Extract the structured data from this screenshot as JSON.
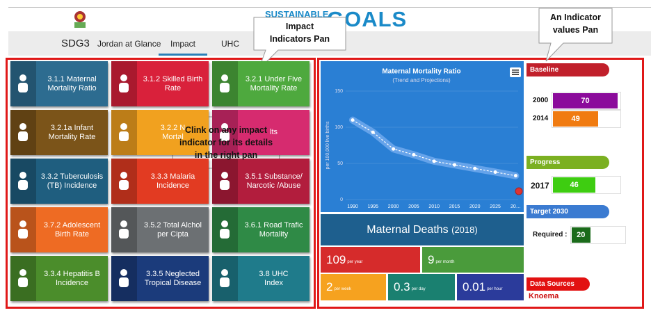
{
  "header": {
    "brand_small": "SUSTAINABLE",
    "brand_large": "GOALS"
  },
  "nav": {
    "tabs": [
      "SDG3",
      "Jordan at Glance",
      "Impact",
      "UHC"
    ],
    "active": 2
  },
  "callouts": [
    {
      "lines": [
        "Impact",
        "Indicators Pan"
      ]
    },
    {
      "lines": [
        "An Indicator",
        "values Pan"
      ]
    },
    {
      "lines": [
        "Clink on any impact",
        "indicator for its details",
        "in the right pan"
      ]
    }
  ],
  "tiles": [
    {
      "lines": [
        "3.1.1 Maternal",
        "Mortality Ratio"
      ],
      "color": "#2d6c90"
    },
    {
      "lines": [
        "3.1.2 Skilled Birth",
        "Rate"
      ],
      "color": "#d9213b"
    },
    {
      "lines": [
        "3.2.1 Under Five",
        "Mortality Rate"
      ],
      "color": "#4ea93e"
    },
    {
      "lines": [
        "3.2.1a Infant",
        "Mortality Rate"
      ],
      "color": "#7b5419"
    },
    {
      "lines": [
        "3.2.2 N",
        "Mortal"
      ],
      "color": "#f1a11f"
    },
    {
      "lines": [
        "lts"
      ],
      "color": "#d62b6f"
    },
    {
      "lines": [
        "3.3.2 Tuberculosis",
        "(TB) Incidence"
      ],
      "color": "#1f5e7f"
    },
    {
      "lines": [
        "3.3.3 Malaria",
        "Incidence"
      ],
      "color": "#e23b22"
    },
    {
      "lines": [
        "3.5.1 Substance/",
        "Narcotic /Abuse"
      ],
      "color": "#b21d3d"
    },
    {
      "lines": [
        "3.7.2 Adolescent",
        "Birth Rate"
      ],
      "color": "#ee6b23"
    },
    {
      "lines": [
        "3.5.2 Total Alchol",
        "per Cipta"
      ],
      "color": "#6c7073"
    },
    {
      "lines": [
        "3.6.1 Road Trafic",
        "Mortality"
      ],
      "color": "#2f8a46"
    },
    {
      "lines": [
        "3.3.4 Hepatitis B",
        "Incidence"
      ],
      "color": "#4b8d2b"
    },
    {
      "lines": [
        "3.3.5 Neglected",
        "Tropical Disease"
      ],
      "color": "#1b3b7b"
    },
    {
      "lines": [
        "3.8 UHC",
        "Index"
      ],
      "color": "#1f7b8b"
    }
  ],
  "chart_data": {
    "type": "line",
    "title": "Maternal Mortality Ratio",
    "subtitle": "(Trend and Projections)",
    "y_label": "per 100,000 live births",
    "categories": [
      "1990",
      "1995",
      "2000",
      "2005",
      "2010",
      "2015",
      "2020",
      "2025",
      "20…"
    ],
    "values": [
      110,
      93,
      70,
      62,
      53,
      48,
      43,
      38,
      33
    ],
    "color": "#ffffff",
    "ylim": [
      0,
      150
    ],
    "yticks": [
      0,
      50,
      100,
      150
    ]
  },
  "deaths": {
    "title": "Maternal Deaths",
    "year": "(2018)",
    "stats": [
      {
        "value": 109,
        "unit": "per year",
        "color": "#d62b2b"
      },
      {
        "value": 9,
        "unit": "per month",
        "color": "#4a9b3b"
      },
      {
        "value": 2,
        "unit": "per week",
        "color": "#f6a21f"
      },
      {
        "value": 0.3,
        "unit": "per day",
        "color": "#1a8070"
      },
      {
        "value": 0.01,
        "unit": "per hour",
        "color": "#2b3b9b"
      }
    ]
  },
  "indicators": [
    {
      "title": "Baseline",
      "color": "#c1202b",
      "rows": [
        {
          "label": "2000",
          "value": 70,
          "color": "#8b0b9b"
        },
        {
          "label": "2014",
          "value": 49,
          "color": "#f07b11"
        }
      ]
    },
    {
      "title": "Progress",
      "color": "#7bb021",
      "rows": [
        {
          "label": "2017",
          "value": 46,
          "color": "#3ecd11"
        }
      ]
    },
    {
      "title": "Target 2030",
      "color": "#3b7bd1",
      "rows": [
        {
          "label": "Required :",
          "value": 20,
          "color": "#1b6b1b"
        }
      ]
    }
  ],
  "sources": {
    "title": "Data Sources",
    "items": [
      "Knoema"
    ]
  }
}
